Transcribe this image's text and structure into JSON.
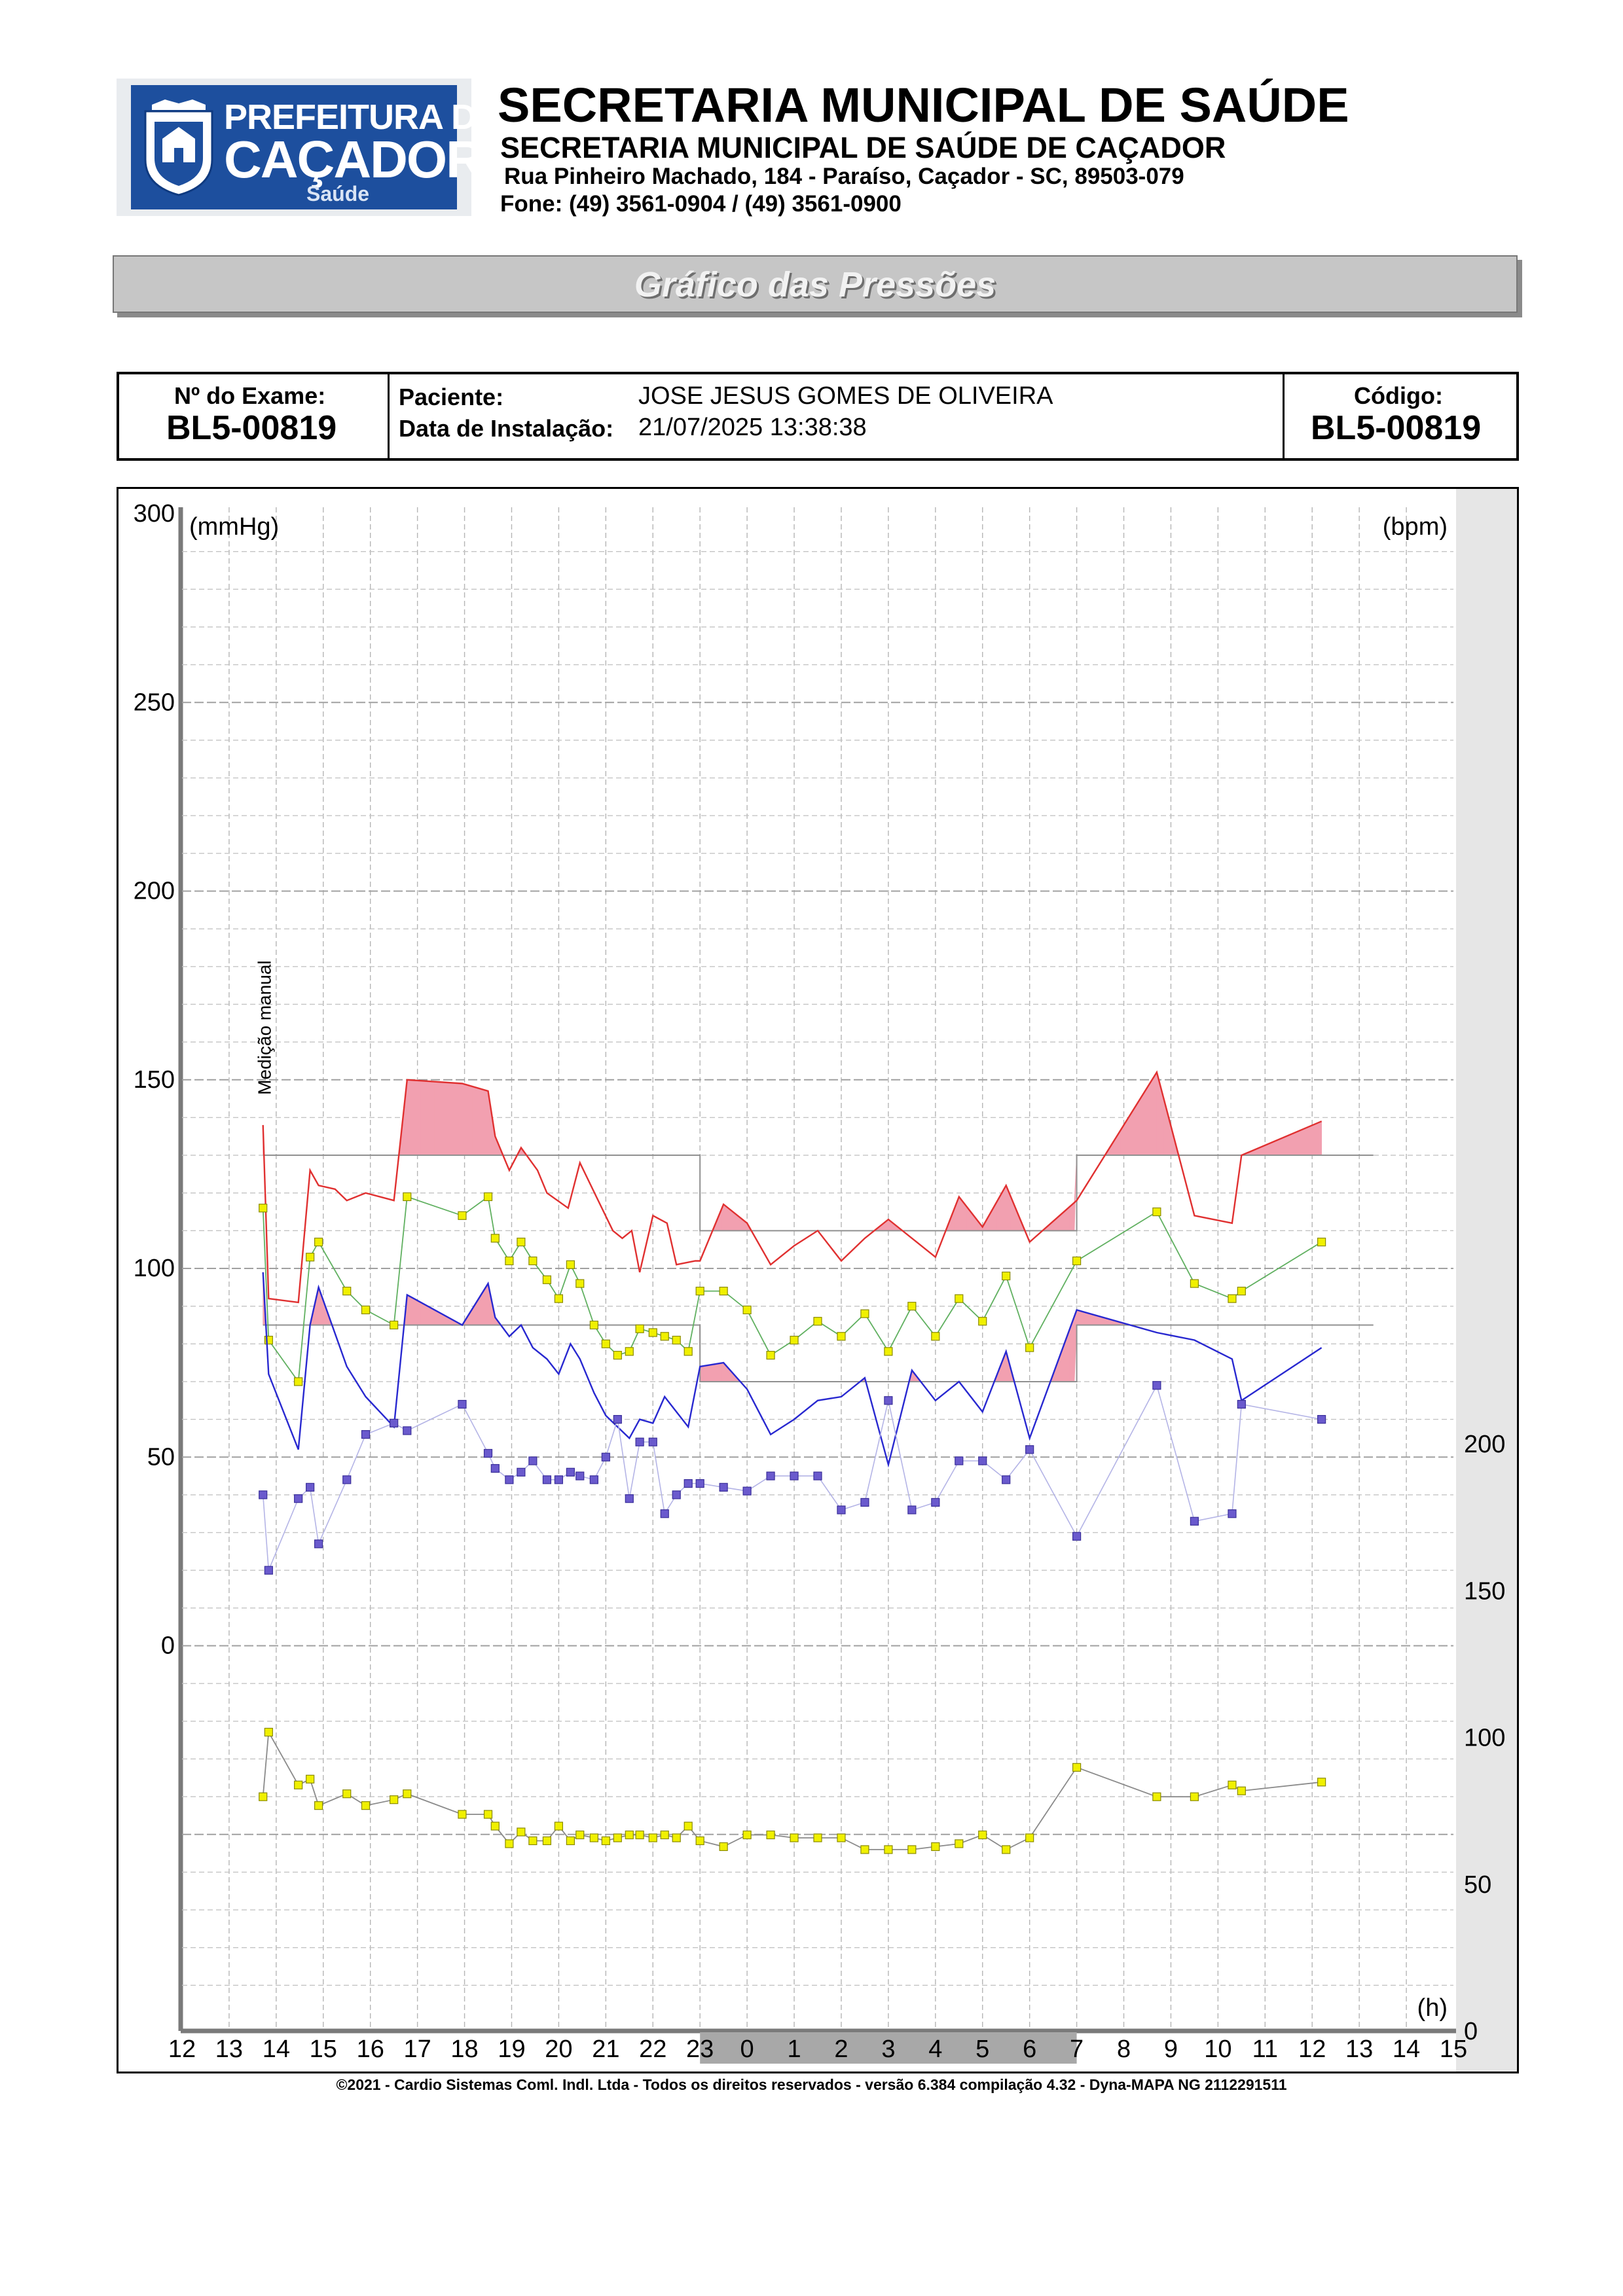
{
  "logo": {
    "line1": "PREFEITURA DE",
    "line2": "CAÇADOR",
    "line3": "Saúde"
  },
  "header": {
    "title": "SECRETARIA MUNICIPAL DE SAÚDE",
    "subtitle": "SECRETARIA MUNICIPAL DE SAÚDE DE CAÇADOR",
    "address": "Rua Pinheiro Machado, 184 - Paraíso, Caçador - SC, 89503-079",
    "phone": "Fone: (49) 3561-0904  / (49) 3561-0900"
  },
  "banner": {
    "title": "Gráfico das Pressões"
  },
  "exam": {
    "exam_label": "Nº do Exame:",
    "exam_number": "BL5-00819",
    "patient_label": "Paciente:",
    "patient_name": "JOSE JESUS GOMES DE OLIVEIRA",
    "install_label": "Data de Instalação:",
    "install_date": "21/07/2025 13:38:38",
    "code_label": "Código:",
    "code_value": "BL5-00819"
  },
  "footer": {
    "text": "©2021 - Cardio Sistemas Coml. Indl. Ltda - Todos os direitos reservados - versão 6.384 compilação 4.32 - Dyna-MAPA NG 2112291511"
  },
  "colors": {
    "systolic": "#e03030",
    "diastolic": "#2828d0",
    "mean": "#60b060",
    "pulse_pressure": "#6a5acd",
    "heart_rate": "#f0f000",
    "excess_fill": "#f2a0b0",
    "night": "#a8a8a8",
    "threshold": "#909090"
  },
  "chart_data": {
    "type": "line",
    "left_unit": "(mmHg)",
    "right_unit": "(bpm)",
    "x_unit": "(h)",
    "annotation": "Medição manual",
    "left_axis": {
      "ylim": [
        -100,
        300
      ],
      "ticks": [
        "300",
        "250",
        "200",
        "150",
        "100",
        "50",
        "0"
      ],
      "tick_values": [
        300,
        250,
        200,
        150,
        100,
        50,
        0
      ]
    },
    "right_axis": {
      "ylim": [
        0,
        300
      ],
      "ticks": [
        "200",
        "150",
        "100",
        "50",
        "0"
      ],
      "tick_values": [
        200,
        150,
        100,
        50,
        0
      ]
    },
    "x_ticks": [
      "12",
      "13",
      "14",
      "15",
      "16",
      "17",
      "18",
      "19",
      "20",
      "21",
      "22",
      "23",
      "0",
      "1",
      "2",
      "3",
      "4",
      "5",
      "6",
      "7",
      "8",
      "9",
      "10",
      "11",
      "12",
      "13",
      "14",
      "15"
    ],
    "x_range_hours": [
      12,
      39
    ],
    "night_period": [
      23,
      31
    ],
    "thresholds": {
      "systolic_day": 130,
      "systolic_night": 110,
      "diastolic_day": 85,
      "diastolic_night": 70
    },
    "series": [
      {
        "key": "systolic",
        "axis": "left",
        "x": [
          13.72,
          13.84,
          14.47,
          14.72,
          14.9,
          15.25,
          15.5,
          15.9,
          16.5,
          16.78,
          17.95,
          18.5,
          18.65,
          18.95,
          19.2,
          19.55,
          19.75,
          20.2,
          20.45,
          20.8,
          21.15,
          21.35,
          21.55,
          21.72,
          22.0,
          22.3,
          22.5,
          22.9,
          23.0,
          23.5,
          24.0,
          24.5,
          25.0,
          25.5,
          26.0,
          26.5,
          27.0,
          27.5,
          28.0,
          28.5,
          29.0,
          29.5,
          30.0,
          31.0,
          32.7,
          33.5,
          34.3,
          34.5,
          36.2
        ],
        "values": [
          138,
          92,
          91,
          126,
          122,
          121,
          118,
          120,
          118,
          150,
          149,
          147,
          135,
          126,
          132,
          126,
          120,
          116,
          128,
          119,
          110,
          108,
          110,
          99,
          114,
          112,
          101,
          102,
          102,
          117,
          112,
          101,
          106,
          110,
          102,
          108,
          113,
          108,
          103,
          119,
          111,
          122,
          107,
          118,
          152,
          114,
          112,
          130,
          139
        ]
      },
      {
        "key": "mean",
        "axis": "left",
        "x": [
          13.72,
          13.84,
          14.47,
          14.72,
          14.9,
          15.5,
          15.9,
          16.5,
          16.78,
          17.95,
          18.5,
          18.65,
          18.95,
          19.2,
          19.45,
          19.75,
          20.0,
          20.25,
          20.45,
          20.75,
          21.0,
          21.25,
          21.5,
          21.72,
          22.0,
          22.25,
          22.5,
          22.75,
          23.0,
          23.5,
          24.0,
          24.5,
          25.0,
          25.5,
          26.0,
          26.5,
          27.0,
          27.5,
          28.0,
          28.5,
          29.0,
          29.5,
          30.0,
          31.0,
          32.7,
          33.5,
          34.3,
          34.5,
          36.2
        ],
        "values": [
          116,
          81,
          70,
          103,
          107,
          94,
          89,
          85,
          119,
          114,
          119,
          108,
          102,
          107,
          102,
          97,
          92,
          101,
          96,
          85,
          80,
          77,
          78,
          84,
          83,
          82,
          81,
          78,
          94,
          94,
          89,
          77,
          81,
          86,
          82,
          88,
          78,
          90,
          82,
          92,
          86,
          98,
          79,
          102,
          115,
          96,
          92,
          94,
          107
        ]
      },
      {
        "key": "diastolic",
        "axis": "left",
        "x": [
          13.72,
          13.84,
          14.47,
          14.72,
          14.9,
          15.5,
          15.9,
          16.5,
          16.78,
          17.95,
          18.5,
          18.65,
          18.95,
          19.2,
          19.45,
          19.75,
          20.0,
          20.25,
          20.45,
          20.75,
          21.0,
          21.25,
          21.5,
          21.72,
          22.0,
          22.25,
          22.5,
          22.75,
          23.0,
          23.5,
          24.0,
          24.5,
          25.0,
          25.5,
          26.0,
          26.5,
          27.0,
          27.5,
          28.0,
          28.5,
          29.0,
          29.5,
          30.0,
          31.0,
          32.7,
          33.5,
          34.3,
          34.5,
          36.2
        ],
        "values": [
          99,
          72,
          52,
          85,
          95,
          74,
          66,
          58,
          93,
          85,
          96,
          87,
          82,
          85,
          79,
          76,
          72,
          80,
          76,
          67,
          61,
          58,
          55,
          60,
          59,
          66,
          62,
          58,
          74,
          75,
          68,
          56,
          60,
          65,
          66,
          71,
          48,
          73,
          65,
          70,
          62,
          78,
          55,
          89,
          83,
          81,
          76,
          65,
          79
        ]
      },
      {
        "key": "pulse_pressure",
        "axis": "left",
        "x": [
          13.72,
          13.84,
          14.47,
          14.72,
          14.9,
          15.5,
          15.9,
          16.5,
          16.78,
          17.95,
          18.5,
          18.65,
          18.95,
          19.2,
          19.45,
          19.75,
          20.0,
          20.25,
          20.45,
          20.75,
          21.0,
          21.25,
          21.5,
          21.72,
          22.0,
          22.25,
          22.5,
          22.75,
          23.0,
          23.5,
          24.0,
          24.5,
          25.0,
          25.5,
          26.0,
          26.5,
          27.0,
          27.5,
          28.0,
          28.5,
          29.0,
          29.5,
          30.0,
          31.0,
          32.7,
          33.5,
          34.3,
          34.5,
          36.2
        ],
        "values": [
          40,
          20,
          39,
          42,
          27,
          44,
          56,
          59,
          57,
          64,
          51,
          47,
          44,
          46,
          49,
          44,
          44,
          46,
          45,
          44,
          50,
          60,
          39,
          54,
          54,
          35,
          40,
          43,
          43,
          42,
          41,
          45,
          45,
          45,
          36,
          38,
          65,
          36,
          38,
          49,
          49,
          44,
          52,
          29,
          69,
          33,
          35,
          64,
          60
        ]
      },
      {
        "key": "heart_rate",
        "axis": "right",
        "x": [
          13.72,
          13.84,
          14.47,
          14.72,
          14.9,
          15.5,
          15.9,
          16.5,
          16.78,
          17.95,
          18.5,
          18.65,
          18.95,
          19.2,
          19.45,
          19.75,
          20.0,
          20.25,
          20.45,
          20.75,
          21.0,
          21.25,
          21.5,
          21.72,
          22.0,
          22.25,
          22.5,
          22.75,
          23.0,
          23.5,
          24.0,
          24.5,
          25.0,
          25.5,
          26.0,
          26.5,
          27.0,
          27.5,
          28.0,
          28.5,
          29.0,
          29.5,
          30.0,
          31.0,
          32.7,
          33.5,
          34.3,
          34.5,
          36.2
        ],
        "values": [
          80,
          102,
          84,
          86,
          77,
          81,
          77,
          79,
          81,
          74,
          74,
          70,
          64,
          68,
          65,
          65,
          70,
          65,
          67,
          66,
          65,
          66,
          67,
          67,
          66,
          67,
          66,
          70,
          65,
          63,
          67,
          67,
          66,
          66,
          66,
          62,
          62,
          62,
          63,
          64,
          67,
          62,
          66,
          90,
          80,
          80,
          84,
          82,
          85
        ]
      }
    ]
  }
}
